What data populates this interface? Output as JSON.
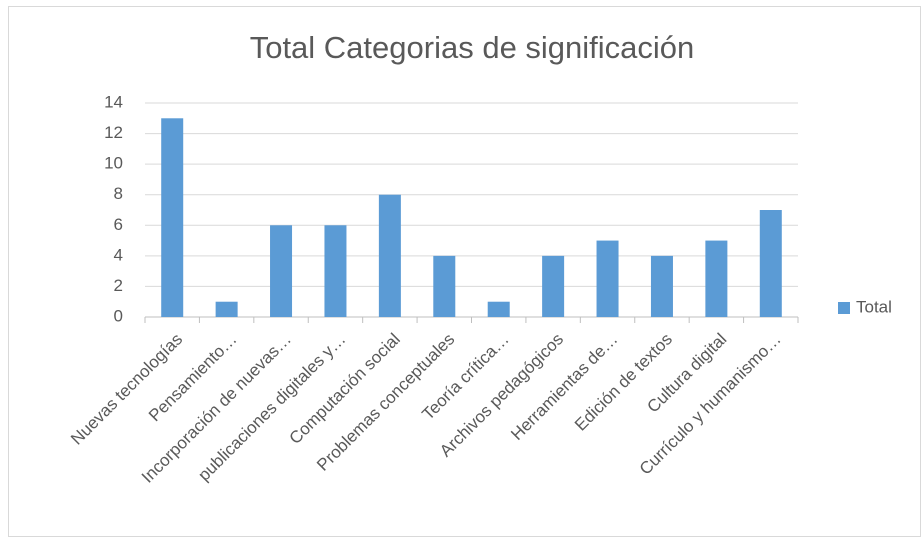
{
  "chart_data": {
    "type": "bar",
    "title": "Total Categorias de significación",
    "categories": [
      "Nuevas tecnologías",
      "Pensamiento…",
      "Incorporación de nuevas…",
      "publicaciones digitales y…",
      "Computación social",
      "Problemas conceptuales",
      "Teoría crítica…",
      "Archivos pedagógicos",
      "Herramientas de…",
      "Edición de textos",
      "Cultura digital",
      "Currículo y humanismo…"
    ],
    "series": [
      {
        "name": "Total",
        "color": "#5b9bd5",
        "values": [
          13,
          1,
          6,
          6,
          8,
          4,
          1,
          4,
          5,
          4,
          5,
          7
        ]
      }
    ],
    "ylim": [
      0,
      14
    ],
    "yticks": [
      0,
      2,
      4,
      6,
      8,
      10,
      12,
      14
    ],
    "grid": true,
    "legend": "right"
  }
}
